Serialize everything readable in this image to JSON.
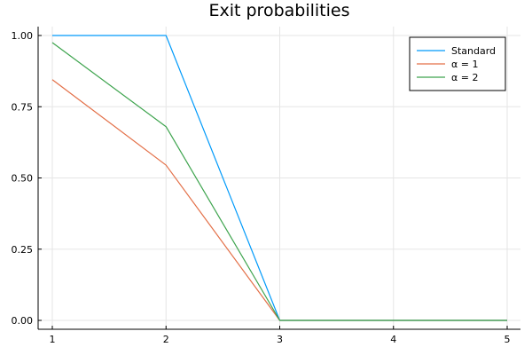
{
  "chart_data": {
    "type": "line",
    "title": "Exit probabilities",
    "xlabel": "",
    "ylabel": "",
    "x": [
      1,
      2,
      3,
      4,
      5
    ],
    "xlim": [
      1,
      5
    ],
    "ylim": [
      0,
      1
    ],
    "xticks": [
      1,
      2,
      3,
      4,
      5
    ],
    "yticks": [
      "0.00",
      "0.25",
      "0.50",
      "0.75",
      "1.00"
    ],
    "grid": true,
    "legend_position": "top-right",
    "series": [
      {
        "name": "Standard",
        "color": "#009AFA",
        "values": [
          1.0,
          1.0,
          0.0,
          0.0,
          0.0
        ]
      },
      {
        "name": "α = 1",
        "color": "#E36F47",
        "values": [
          0.845,
          0.545,
          0.0,
          0.0,
          0.0
        ]
      },
      {
        "name": "α = 2",
        "color": "#3EA44E",
        "values": [
          0.975,
          0.68,
          0.0,
          0.0,
          0.0
        ]
      }
    ]
  }
}
